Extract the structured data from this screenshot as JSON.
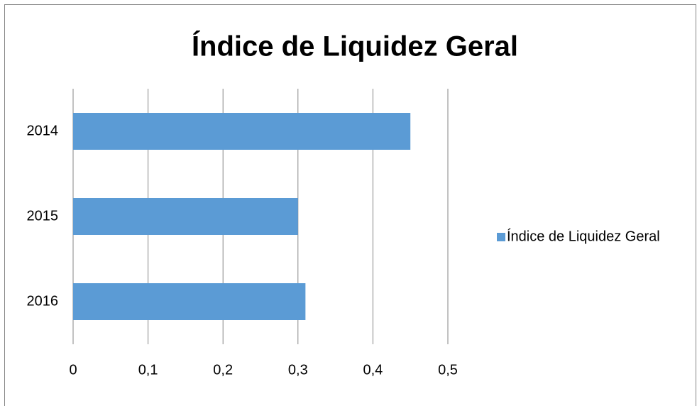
{
  "chart_data": {
    "type": "hbar",
    "title": "Índice de Liquidez Geral",
    "categories": [
      "2014",
      "2015",
      "2016"
    ],
    "series": [
      {
        "name": "Índice de Liquidez Geral",
        "color": "#5b9bd5",
        "values": [
          0.45,
          0.3,
          0.31
        ]
      }
    ],
    "xlim": [
      0,
      0.5
    ],
    "xticks": [
      0,
      {
        "value": 0.1,
        "label": "0,1"
      },
      {
        "value": 0.2,
        "label": "0,2"
      },
      {
        "value": 0.3,
        "label": "0,3"
      },
      {
        "value": 0.4,
        "label": "0,4"
      },
      {
        "value": 0.5,
        "label": "0,5"
      }
    ],
    "grid": true,
    "legend": "right"
  }
}
